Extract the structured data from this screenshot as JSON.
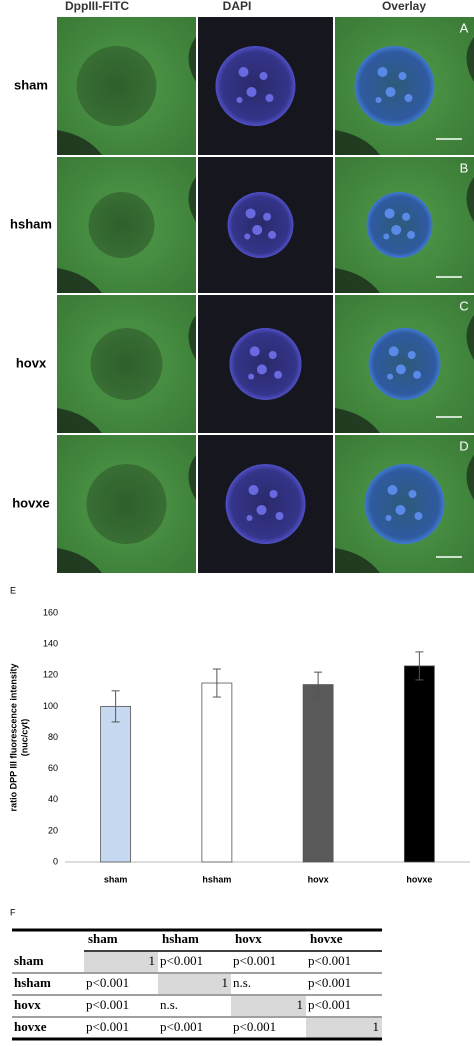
{
  "microscopy": {
    "columns": [
      "DppIII-FITC",
      "DAPI",
      "Overlay"
    ],
    "rows": [
      "sham",
      "hsham",
      "hovx",
      "hovxe"
    ],
    "panel_letters": [
      "A",
      "B",
      "C",
      "D"
    ]
  },
  "chart_data": {
    "type": "bar",
    "panel_label": "E",
    "y_label": [
      "ratio DPP III fluorescence intensity",
      "(nuc/cyt)"
    ],
    "categories": [
      "sham",
      "hsham",
      "hovx",
      "hovxe"
    ],
    "values": [
      100,
      115,
      114,
      126
    ],
    "errors": [
      10,
      9,
      8,
      9
    ],
    "colors": [
      "#c6d9f1",
      "#ffffff",
      "#595959",
      "#000000"
    ],
    "ylim": [
      0,
      160
    ],
    "yticks": [
      0,
      20,
      40,
      60,
      80,
      100,
      120,
      140,
      160
    ]
  },
  "table": {
    "panel_label": "F",
    "header": [
      "sham",
      "hsham",
      "hovx",
      "hovxe"
    ],
    "rows": [
      [
        "sham",
        1,
        "p<0.001",
        "p<0.001",
        "p<0.001"
      ],
      [
        "hsham",
        "p<0.001",
        1,
        "n.s.",
        "p<0.001"
      ],
      [
        "hovx",
        "p<0.001",
        "n.s.",
        1,
        "p<0.001"
      ],
      [
        "hovxe",
        "p<0.001",
        "p<0.001",
        "p<0.001",
        1
      ]
    ]
  }
}
